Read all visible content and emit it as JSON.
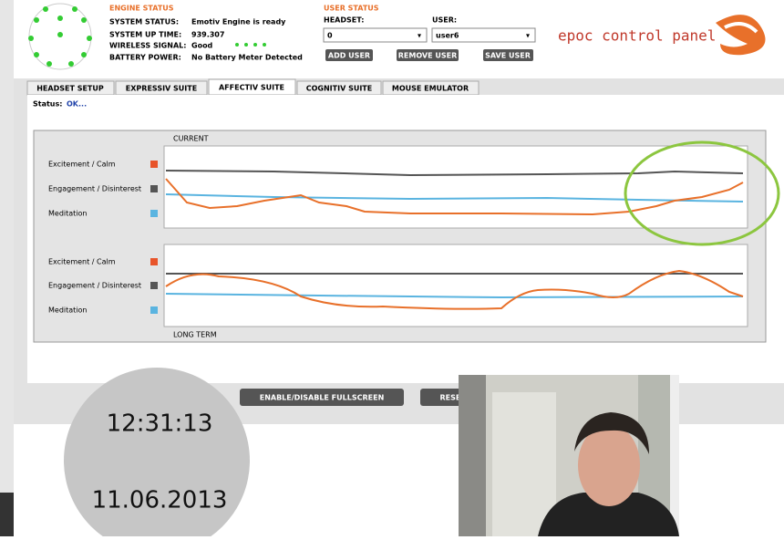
{
  "engine_status": {
    "title": "ENGINE STATUS",
    "rows": [
      {
        "label": "SYSTEM STATUS:",
        "value": "Emotiv Engine is ready"
      },
      {
        "label": "SYSTEM UP TIME:",
        "value": "939.307"
      },
      {
        "label": "WIRELESS SIGNAL:",
        "value": "Good"
      },
      {
        "label": "BATTERY POWER:",
        "value": "No Battery Meter Detected"
      }
    ]
  },
  "user_status": {
    "title": "USER STATUS",
    "headset_label": "HEADSET:",
    "headset_value": "0",
    "user_label": "USER:",
    "user_value": "user6",
    "buttons": [
      "ADD USER",
      "REMOVE USER",
      "SAVE USER"
    ]
  },
  "logo": "epoc control panel",
  "tabs": [
    "HEADSET SETUP",
    "EXPRESSIV SUITE",
    "AFFECTIV SUITE",
    "COGNITIV SUITE",
    "MOUSE EMULATOR"
  ],
  "status": {
    "label": "Status:",
    "value": "OK..."
  },
  "charts": {
    "current": {
      "title": "CURRENT",
      "legend": [
        "Excitement / Calm",
        "Engagement / Disinterest",
        "Meditation"
      ]
    },
    "long_term": {
      "title": "LONG TERM",
      "legend": [
        "Excitement / Calm",
        "Engagement / Disinterest",
        "Meditation"
      ]
    }
  },
  "buttons": [
    "ENABLE/DISABLE FULLSCREEN",
    "RESET CALIBRATION"
  ],
  "clock": {
    "time": "12:31:13",
    "date": "11.06.2013"
  }
}
